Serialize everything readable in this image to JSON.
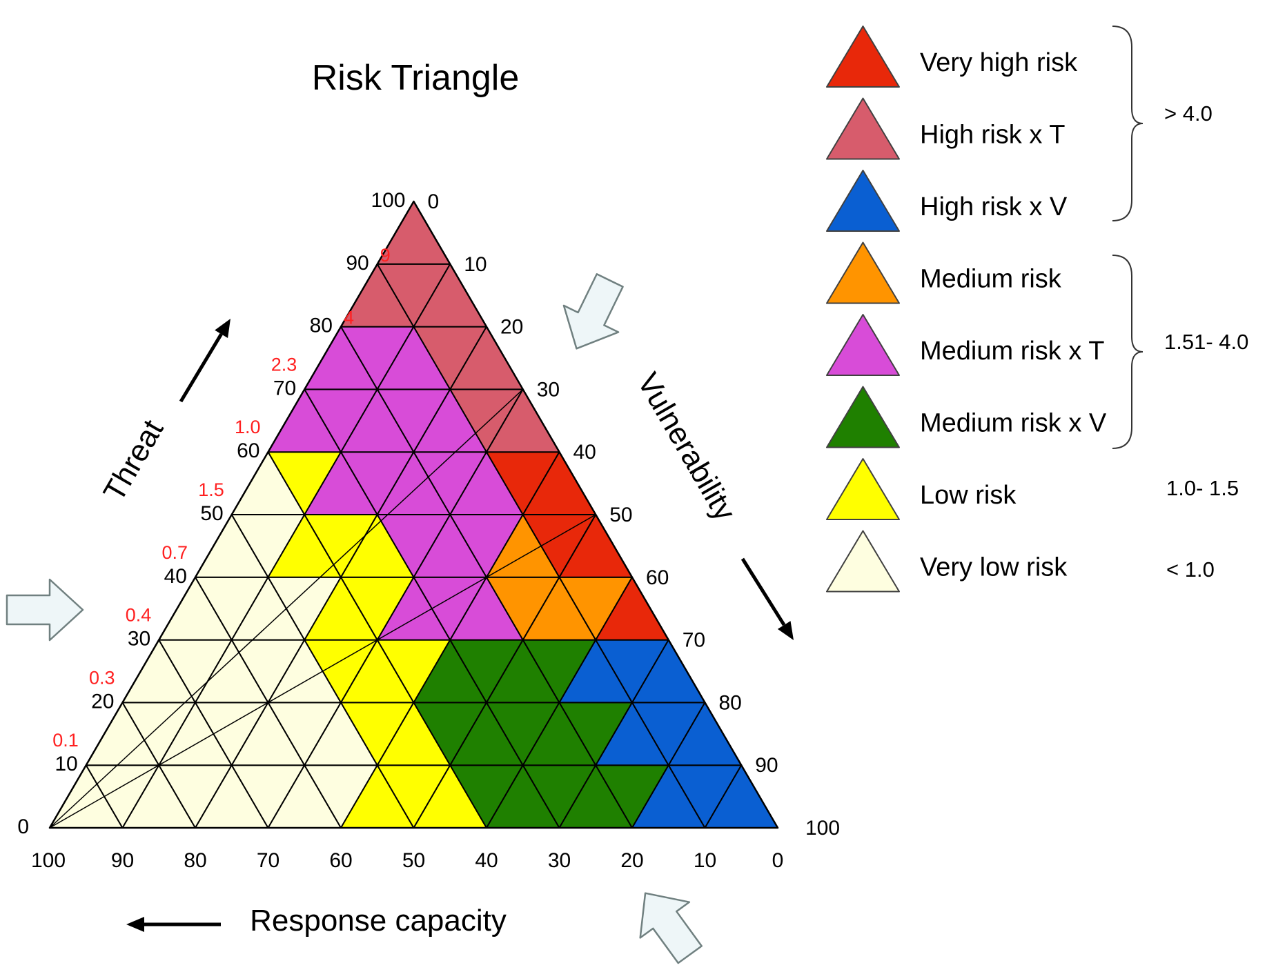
{
  "title": "Risk Triangle",
  "axes": {
    "threat": {
      "label": "Threat",
      "ticks": [
        "0",
        "10",
        "20",
        "30",
        "40",
        "50",
        "60",
        "70",
        "80",
        "90",
        "100"
      ],
      "risk_values": [
        "0.1",
        "0.3",
        "0.4",
        "0.7",
        "1.5",
        "1.0",
        "2.3",
        "4",
        "9"
      ],
      "risk_value_color": "#ff2020"
    },
    "vulnerability": {
      "label": "Vulnerability",
      "ticks": [
        "0",
        "10",
        "20",
        "30",
        "40",
        "50",
        "60",
        "70",
        "80",
        "90",
        "100"
      ]
    },
    "response_capacity": {
      "label": "Response capacity",
      "ticks": [
        "100",
        "90",
        "80",
        "70",
        "60",
        "50",
        "40",
        "30",
        "20",
        "10",
        "0"
      ]
    }
  },
  "legend": [
    {
      "label": "Very high risk",
      "color": "#e8280a"
    },
    {
      "label": "High risk x T",
      "color": "#d75c6c"
    },
    {
      "label": "High risk x V",
      "color": "#0a5fd2"
    },
    {
      "label": "Medium risk",
      "color": "#ff9400"
    },
    {
      "label": "Medium risk x T",
      "color": "#d84cd8"
    },
    {
      "label": "Medium risk x V",
      "color": "#1f8000"
    },
    {
      "label": "Low risk",
      "color": "#ffff00"
    },
    {
      "label": "Very low risk",
      "color": "#fefee0"
    }
  ],
  "legend_ranges": [
    {
      "label": "> 4.0",
      "bracket": true
    },
    {
      "label": "1.51- 4.0",
      "bracket": true
    },
    {
      "label": "1.0- 1.5",
      "bracket": false
    },
    {
      "label": "< 1.0",
      "bracket": false
    }
  ],
  "colors": {
    "line": "#000000",
    "hollow_arrow_fill": "#eef6f8",
    "hollow_arrow_stroke": "#708080"
  }
}
